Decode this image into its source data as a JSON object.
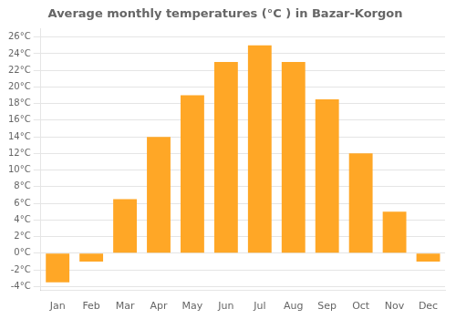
{
  "chart_data": {
    "type": "bar",
    "title": "Average monthly temperatures (°C ) in Bazar-Korgon",
    "categories": [
      "Jan",
      "Feb",
      "Mar",
      "Apr",
      "May",
      "Jun",
      "Jul",
      "Aug",
      "Sep",
      "Oct",
      "Nov",
      "Dec"
    ],
    "values": [
      -3.5,
      -1.0,
      6.5,
      14.0,
      19.0,
      23.0,
      25.0,
      23.0,
      18.5,
      12.0,
      5.0,
      -1.0
    ],
    "color": "#FFA726",
    "ylim": [
      -4.5,
      27
    ],
    "yticks": [
      {
        "value": -4,
        "label": "-4°C"
      },
      {
        "value": -2,
        "label": "-2°C"
      },
      {
        "value": 0,
        "label": "0°C"
      },
      {
        "value": 2,
        "label": "2°C"
      },
      {
        "value": 4,
        "label": "4°C"
      },
      {
        "value": 6,
        "label": "6°C"
      },
      {
        "value": 8,
        "label": "8°C"
      },
      {
        "value": 10,
        "label": "10°C"
      },
      {
        "value": 12,
        "label": "12°C"
      },
      {
        "value": 14,
        "label": "14°C"
      },
      {
        "value": 16,
        "label": "16°C"
      },
      {
        "value": 18,
        "label": "18°C"
      },
      {
        "value": 20,
        "label": "20°C"
      },
      {
        "value": 22,
        "label": "22°C"
      },
      {
        "value": 24,
        "label": "24°C"
      },
      {
        "value": 26,
        "label": "26°C"
      }
    ],
    "grid": true
  }
}
